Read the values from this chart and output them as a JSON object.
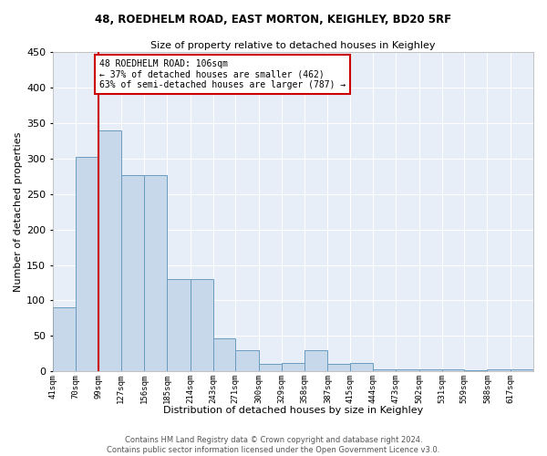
{
  "title1": "48, ROEDHELM ROAD, EAST MORTON, KEIGHLEY, BD20 5RF",
  "title2": "Size of property relative to detached houses in Keighley",
  "xlabel": "Distribution of detached houses by size in Keighley",
  "ylabel": "Number of detached properties",
  "bins": [
    41,
    70,
    99,
    127,
    156,
    185,
    214,
    243,
    271,
    300,
    329,
    358,
    387,
    415,
    444,
    473,
    502,
    531,
    559,
    588,
    617
  ],
  "counts": [
    90,
    303,
    340,
    277,
    277,
    130,
    130,
    46,
    30,
    10,
    12,
    30,
    10,
    12,
    3,
    3,
    3,
    3,
    1,
    3,
    3
  ],
  "bar_color": "#c8d8eb",
  "bar_edge_color": "#6a9bbf",
  "bg_color": "#e8eef8",
  "grid_color": "#ffffff",
  "property_bin_index": 2,
  "vline_color": "#cc0000",
  "annotation_text": "48 ROEDHELM ROAD: 106sqm\n← 37% of detached houses are smaller (462)\n63% of semi-detached houses are larger (787) →",
  "annotation_box_color": "#ffffff",
  "annotation_box_edge": "#cc0000",
  "tick_labels": [
    "41sqm",
    "70sqm",
    "99sqm",
    "127sqm",
    "156sqm",
    "185sqm",
    "214sqm",
    "243sqm",
    "271sqm",
    "300sqm",
    "329sqm",
    "358sqm",
    "387sqm",
    "415sqm",
    "444sqm",
    "473sqm",
    "502sqm",
    "531sqm",
    "559sqm",
    "588sqm",
    "617sqm"
  ],
  "footer": "Contains HM Land Registry data © Crown copyright and database right 2024.\nContains public sector information licensed under the Open Government Licence v3.0.",
  "ylim": [
    0,
    450
  ],
  "yticks": [
    0,
    50,
    100,
    150,
    200,
    250,
    300,
    350,
    400,
    450
  ]
}
